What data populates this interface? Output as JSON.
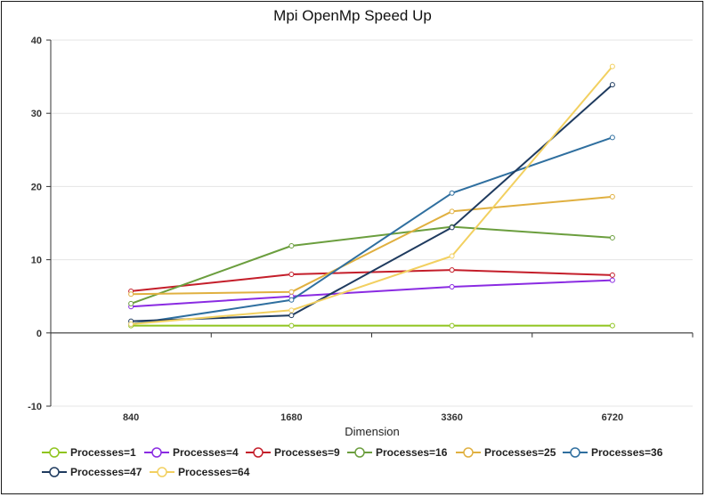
{
  "chart_data": {
    "type": "line",
    "title": "Mpi OpenMp Speed Up",
    "xlabel": "Dimension",
    "ylabel": "",
    "categories": [
      "840",
      "1680",
      "3360",
      "6720"
    ],
    "ylim": [
      -10,
      40
    ],
    "yticks": [
      -10,
      0,
      10,
      20,
      30,
      40
    ],
    "grid": true,
    "legend_position": "bottom",
    "series": [
      {
        "name": "Processes=1",
        "color": "#8fc41e",
        "values": [
          1.0,
          1.0,
          1.0,
          1.0
        ]
      },
      {
        "name": "Processes=4",
        "color": "#8a2be2",
        "values": [
          3.6,
          5.0,
          6.3,
          7.2
        ]
      },
      {
        "name": "Processes=9",
        "color": "#c41e2a",
        "values": [
          5.7,
          8.0,
          8.6,
          7.9
        ]
      },
      {
        "name": "Processes=16",
        "color": "#6b9e3e",
        "values": [
          4.0,
          11.9,
          14.5,
          13.0
        ]
      },
      {
        "name": "Processes=25",
        "color": "#e0b040",
        "values": [
          5.3,
          5.6,
          16.6,
          18.6
        ]
      },
      {
        "name": "Processes=36",
        "color": "#2f6f9f",
        "values": [
          1.2,
          4.5,
          19.1,
          26.7
        ]
      },
      {
        "name": "Processes=47",
        "color": "#1f3b5f",
        "values": [
          1.6,
          2.4,
          14.4,
          33.9
        ]
      },
      {
        "name": "Processes=64",
        "color": "#f2d060",
        "values": [
          1.2,
          3.1,
          10.5,
          36.4
        ]
      }
    ]
  }
}
